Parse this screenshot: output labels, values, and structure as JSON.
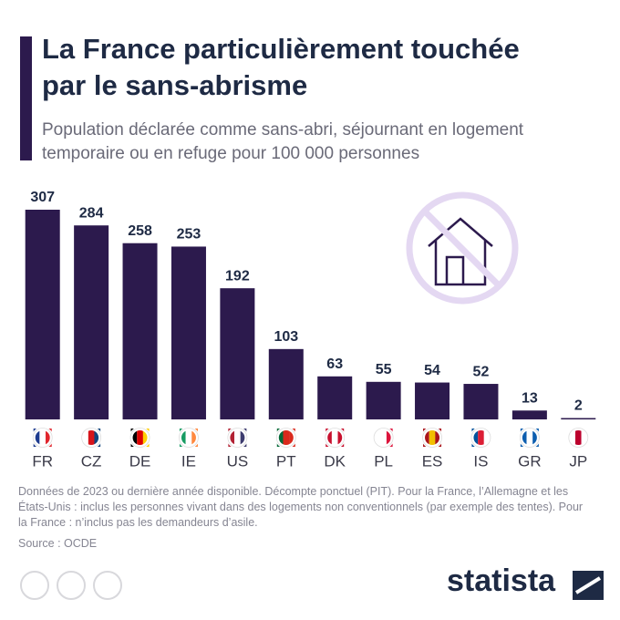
{
  "chart_data": {
    "type": "bar",
    "title": "La France particulièrement touchée par le sans-abrisme",
    "subtitle": "Population déclarée comme sans-abri, séjournant en logement temporaire ou en refuge pour 100 000 personnes",
    "categories": [
      "FR",
      "CZ",
      "DE",
      "IE",
      "US",
      "PT",
      "DK",
      "PL",
      "ES",
      "IS",
      "GR",
      "JP"
    ],
    "values": [
      307,
      284,
      258,
      253,
      192,
      103,
      63,
      55,
      54,
      52,
      13,
      2
    ],
    "color": "#2c1a4d",
    "ylim": [
      0,
      307
    ],
    "note": "Données de 2023 ou dernière année disponible. Décompte ponctuel (PIT). Pour la France, l’Allemagne et les États-Unis : inclus les personnes vivant dans des logements non conventionnels (par exemple des tentes). Pour la France : n’inclus pas les demandeurs d’asile.",
    "source": "Source : OCDE",
    "brand": "statista"
  }
}
